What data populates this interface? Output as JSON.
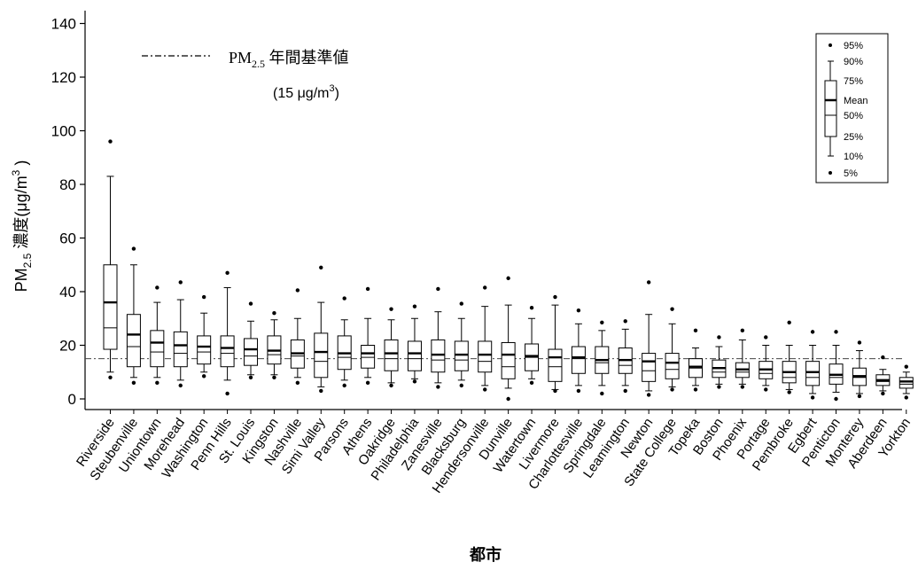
{
  "chart_data": {
    "type": "boxplot",
    "ylabel": "PM2.5 濃度(μg/m3 )",
    "ylabel_parts": {
      "pre": "PM",
      "sub": "2.5",
      "mid": " 濃度(μg/m",
      "sup": "3",
      "post": " )"
    },
    "xlabel": "都市",
    "ylim": [
      0,
      140
    ],
    "yticks": [
      0,
      20,
      40,
      60,
      80,
      100,
      120,
      140
    ],
    "reference": {
      "value": 15,
      "label_pre": "PM",
      "label_sub": "2.5",
      "label_post": " 年間基準値",
      "unit_pre": "(15 μg/m",
      "unit_sup": "3",
      "unit_post": ")"
    },
    "legend": {
      "placement": "top-right",
      "items": [
        "95%",
        "90%",
        "75%",
        "Mean",
        "50%",
        "25%",
        "10%",
        "5%"
      ]
    },
    "categories": [
      "Riverside",
      "Steubenville",
      "Uniontown",
      "Morehead",
      "Washington",
      "Penn Hills",
      "St. Louis",
      "Kingston",
      "Nashville",
      "Simi Valley",
      "Parsons",
      "Athens",
      "Oakridge",
      "Philadelphia",
      "Zanesville",
      "Blacksburg",
      "Hendersonville",
      "Dunville",
      "Watertown",
      "Livermore",
      "Charlottesville",
      "Springdale",
      "Leamington",
      "Newton",
      "State College",
      "Topeka",
      "Boston",
      "Phoenix",
      "Portage",
      "Pembroke",
      "Egbert",
      "Penticton",
      "Monterey",
      "Aberdeen",
      "Yorkton"
    ],
    "series": [
      {
        "p5": 8,
        "p10": 10,
        "p25": 18.5,
        "median": 26.5,
        "mean": 36,
        "p75": 50,
        "p90": 83,
        "p95": 96
      },
      {
        "p5": 6,
        "p10": 8,
        "p25": 12,
        "median": 19.5,
        "mean": 24,
        "p75": 31.5,
        "p90": 50,
        "p95": 56
      },
      {
        "p5": 6,
        "p10": 8,
        "p25": 12,
        "median": 17.5,
        "mean": 21,
        "p75": 25.5,
        "p90": 36,
        "p95": 41.5
      },
      {
        "p5": 5,
        "p10": 7,
        "p25": 12,
        "median": 17,
        "mean": 20,
        "p75": 25,
        "p90": 37,
        "p95": 43.5
      },
      {
        "p5": 8.5,
        "p10": 10,
        "p25": 13,
        "median": 17.5,
        "mean": 19.5,
        "p75": 23.5,
        "p90": 32,
        "p95": 38
      },
      {
        "p5": 2,
        "p10": 7,
        "p25": 12,
        "median": 17,
        "mean": 19,
        "p75": 23.5,
        "p90": 41.5,
        "p95": 47
      },
      {
        "p5": 8,
        "p10": 9,
        "p25": 12.5,
        "median": 16,
        "mean": 18.5,
        "p75": 22.5,
        "p90": 29,
        "p95": 35.5
      },
      {
        "p5": 8,
        "p10": 9,
        "p25": 13,
        "median": 16.5,
        "mean": 18,
        "p75": 23.5,
        "p90": 29.5,
        "p95": 32
      },
      {
        "p5": 6,
        "p10": 8,
        "p25": 11.5,
        "median": 16,
        "mean": 17,
        "p75": 22,
        "p90": 30,
        "p95": 40.5
      },
      {
        "p5": 3,
        "p10": 4.5,
        "p25": 8,
        "median": 14,
        "mean": 17.5,
        "p75": 24.5,
        "p90": 36,
        "p95": 49
      },
      {
        "p5": 5,
        "p10": 7,
        "p25": 11,
        "median": 15.5,
        "mean": 17,
        "p75": 23.5,
        "p90": 29.5,
        "p95": 37.5
      },
      {
        "p5": 6,
        "p10": 8,
        "p25": 11.5,
        "median": 15.5,
        "mean": 17,
        "p75": 20,
        "p90": 30,
        "p95": 41
      },
      {
        "p5": 5,
        "p10": 6,
        "p25": 10.5,
        "median": 15,
        "mean": 17,
        "p75": 22,
        "p90": 29.5,
        "p95": 33.5
      },
      {
        "p5": 6.5,
        "p10": 7.5,
        "p25": 10.5,
        "median": 15,
        "mean": 17,
        "p75": 21.5,
        "p90": 30,
        "p95": 34.5
      },
      {
        "p5": 4.5,
        "p10": 6,
        "p25": 10,
        "median": 14.5,
        "mean": 16.5,
        "p75": 22,
        "p90": 32.5,
        "p95": 41
      },
      {
        "p5": 5,
        "p10": 7,
        "p25": 10.5,
        "median": 14.5,
        "mean": 16.5,
        "p75": 21.5,
        "p90": 30,
        "p95": 35.5
      },
      {
        "p5": 3.5,
        "p10": 5,
        "p25": 10,
        "median": 14,
        "mean": 16.5,
        "p75": 21.5,
        "p90": 34.5,
        "p95": 41.5
      },
      {
        "p5": 0,
        "p10": 4,
        "p25": 7.5,
        "median": 12,
        "mean": 16.5,
        "p75": 21,
        "p90": 35,
        "p95": 45
      },
      {
        "p5": 6,
        "p10": 7.5,
        "p25": 10.5,
        "median": 15.5,
        "mean": 16,
        "p75": 20.5,
        "p90": 30,
        "p95": 34
      },
      {
        "p5": 3,
        "p10": 3.5,
        "p25": 6.5,
        "median": 12,
        "mean": 15.5,
        "p75": 18.5,
        "p90": 35,
        "p95": 38
      },
      {
        "p5": 3,
        "p10": 5,
        "p25": 9.5,
        "median": 15,
        "mean": 15.5,
        "p75": 19.5,
        "p90": 28,
        "p95": 33
      },
      {
        "p5": 2,
        "p10": 5,
        "p25": 9.5,
        "median": 13.5,
        "mean": 14.5,
        "p75": 19.5,
        "p90": 25.5,
        "p95": 28.5
      },
      {
        "p5": 3,
        "p10": 5,
        "p25": 9.5,
        "median": 12.5,
        "mean": 14.5,
        "p75": 19,
        "p90": 26,
        "p95": 29
      },
      {
        "p5": 1.5,
        "p10": 3,
        "p25": 6.5,
        "median": 10.5,
        "mean": 14,
        "p75": 17,
        "p90": 31.5,
        "p95": 43.5
      },
      {
        "p5": 3.5,
        "p10": 4.5,
        "p25": 7.5,
        "median": 11,
        "mean": 13.5,
        "p75": 17,
        "p90": 28,
        "p95": 33.5
      },
      {
        "p5": 3.5,
        "p10": 5,
        "p25": 8,
        "median": 11.5,
        "mean": 12,
        "p75": 15,
        "p90": 19,
        "p95": 25.5
      },
      {
        "p5": 4.5,
        "p10": 5.5,
        "p25": 8,
        "median": 10,
        "mean": 11.5,
        "p75": 14.5,
        "p90": 19.5,
        "p95": 23
      },
      {
        "p5": 4.5,
        "p10": 5.5,
        "p25": 8,
        "median": 10,
        "mean": 11,
        "p75": 13.5,
        "p90": 22,
        "p95": 25.5
      },
      {
        "p5": 3.5,
        "p10": 5,
        "p25": 7.5,
        "median": 9.5,
        "mean": 11,
        "p75": 14,
        "p90": 20,
        "p95": 23
      },
      {
        "p5": 2.5,
        "p10": 3.5,
        "p25": 6,
        "median": 8,
        "mean": 10,
        "p75": 14,
        "p90": 20,
        "p95": 28.5
      },
      {
        "p5": 0.5,
        "p10": 2,
        "p25": 5,
        "median": 8,
        "mean": 10,
        "p75": 14,
        "p90": 20,
        "p95": 25
      },
      {
        "p5": 0,
        "p10": 2.5,
        "p25": 5.5,
        "median": 8,
        "mean": 9,
        "p75": 13,
        "p90": 20,
        "p95": 25
      },
      {
        "p5": 1,
        "p10": 2,
        "p25": 5,
        "median": 8,
        "mean": 8.5,
        "p75": 11.5,
        "p90": 18,
        "p95": 21
      },
      {
        "p5": 2,
        "p10": 3,
        "p25": 5,
        "median": 6.5,
        "mean": 7,
        "p75": 9,
        "p90": 11,
        "p95": 15.5
      },
      {
        "p5": 0.5,
        "p10": 2,
        "p25": 4,
        "median": 5.5,
        "mean": 6.5,
        "p75": 8,
        "p90": 10,
        "p95": 12
      }
    ]
  }
}
